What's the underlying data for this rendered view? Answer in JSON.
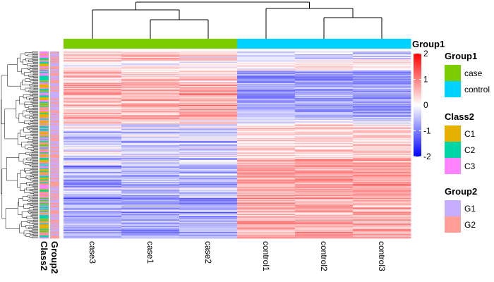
{
  "chart_data": {
    "type": "heatmap",
    "columns": [
      "case3",
      "case1",
      "case2",
      "control1",
      "control2",
      "control3"
    ],
    "row_count": 200,
    "color_scale": {
      "min": -2,
      "mid": 0,
      "max": 2,
      "colors": [
        "#0000ff",
        "#ffffff",
        "#ff0000"
      ],
      "ticks": [
        2,
        1,
        0,
        -1,
        -2
      ],
      "tick_labels": [
        "2",
        "1",
        "0",
        "-1",
        "-2"
      ]
    },
    "column_annotation": {
      "name": "Group1",
      "values": [
        "case",
        "case",
        "case",
        "control",
        "control",
        "control"
      ]
    },
    "row_annotation_names": [
      "Class2",
      "Group2"
    ],
    "legends": [
      {
        "title": "Group1",
        "items": [
          {
            "label": "case",
            "color": "#7ccd00"
          },
          {
            "label": "control",
            "color": "#00d3ff"
          }
        ]
      },
      {
        "title": "Class2",
        "items": [
          {
            "label": "C1",
            "color": "#e5b000"
          },
          {
            "label": "C2",
            "color": "#00d6a5"
          },
          {
            "label": "C3",
            "color": "#ff82ff"
          }
        ]
      },
      {
        "title": "Group2",
        "items": [
          {
            "label": "G1",
            "color": "#c6adff"
          },
          {
            "label": "G2",
            "color": "#ff9d96"
          }
        ]
      }
    ],
    "row_blocks": [
      {
        "rows": 8,
        "case": 0.25,
        "control": -0.4
      },
      {
        "rows": 12,
        "case": 0.1,
        "control": 0.1
      },
      {
        "rows": 10,
        "case": 0.35,
        "control": -0.8
      },
      {
        "rows": 40,
        "case": 0.6,
        "control": -0.75
      },
      {
        "rows": 8,
        "case": 0.4,
        "control": -0.3
      },
      {
        "rows": 14,
        "case": -0.3,
        "control": 0.35
      },
      {
        "rows": 10,
        "case": -0.5,
        "control": 0.4
      },
      {
        "rows": 13,
        "case": -0.15,
        "control": 0.3
      },
      {
        "rows": 40,
        "case": -0.55,
        "control": 0.7
      },
      {
        "rows": 45,
        "case": -0.65,
        "control": 0.65
      }
    ]
  }
}
